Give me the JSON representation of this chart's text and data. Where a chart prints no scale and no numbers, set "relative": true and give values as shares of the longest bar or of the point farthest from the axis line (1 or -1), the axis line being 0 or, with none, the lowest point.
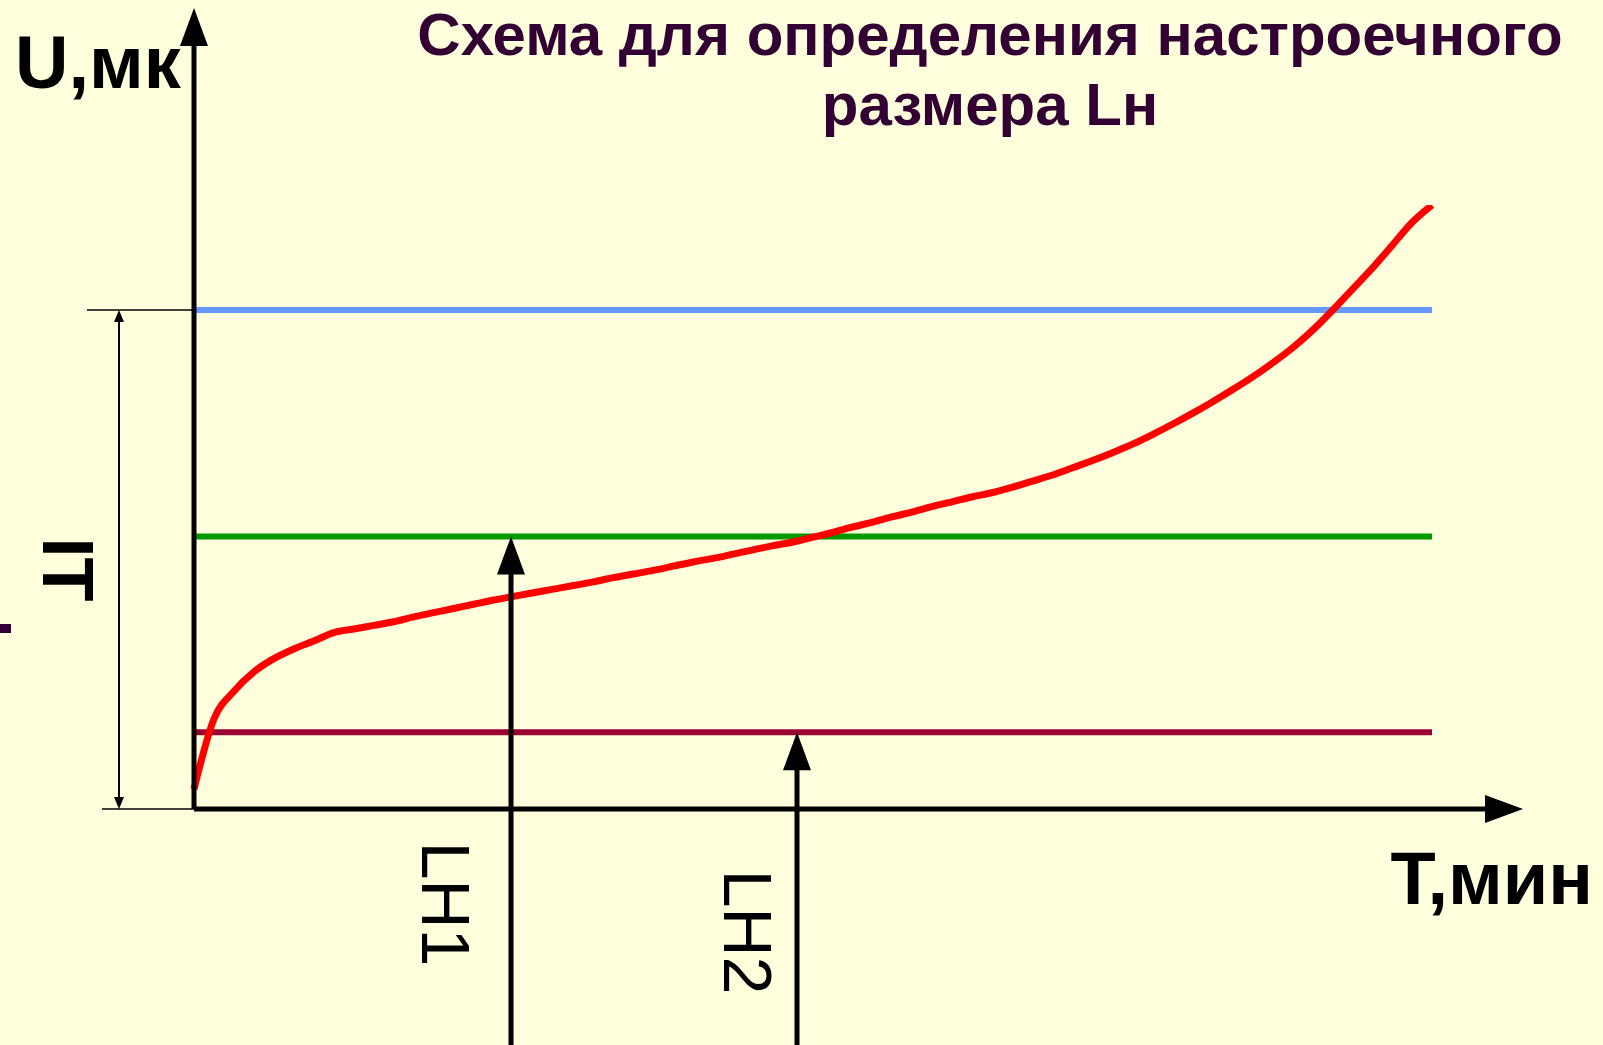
{
  "chart_data": {
    "type": "line",
    "title": "Схема для определения настроечного размера Lн",
    "xlabel": "T,мин",
    "ylabel": "U,мк",
    "relative": true,
    "categories": [
      null,
      null,
      null,
      null,
      null,
      null,
      null,
      null,
      null,
      null,
      null,
      null,
      null,
      null,
      null,
      null,
      null,
      null,
      null,
      null,
      null,
      null,
      null,
      null,
      null,
      null,
      null,
      null,
      null,
      null,
      null,
      null,
      null,
      null,
      null,
      null,
      null,
      null,
      null,
      null,
      null,
      null,
      null,
      null,
      null,
      null,
      null,
      null,
      null,
      null,
      null,
      null,
      null,
      null,
      null,
      null,
      null,
      null,
      null,
      null,
      null,
      null,
      null
    ],
    "series": [
      {
        "color": "#ff0000",
        "values": [
          0.033,
          0.149,
          0.195,
          0.227,
          0.249,
          0.265,
          0.278,
          0.292,
          0.298,
          0.304,
          0.31,
          0.318,
          0.325,
          0.332,
          0.339,
          0.346,
          0.352,
          0.358,
          0.364,
          0.37,
          0.376,
          0.383,
          0.389,
          0.395,
          0.402,
          0.409,
          0.415,
          0.422,
          0.429,
          0.436,
          0.442,
          0.45,
          0.458,
          0.467,
          0.475,
          0.484,
          0.492,
          0.501,
          0.509,
          0.517,
          0.524,
          0.533,
          0.543,
          0.553,
          0.565,
          0.577,
          0.59,
          0.604,
          0.62,
          0.637,
          0.655,
          0.674,
          0.694,
          0.715,
          0.738,
          0.763,
          0.792,
          0.825,
          0.86,
          0.895,
          0.933,
          0.971,
          1
        ]
      }
    ],
    "ref_lines": [
      {
        "axis": "y",
        "value": 0.826,
        "color": "#6699ff"
      },
      {
        "axis": "y",
        "value": 0.451,
        "color": "#009900"
      },
      {
        "axis": "y",
        "value": 0.127,
        "color": "#990033"
      }
    ],
    "annotations": [
      "IT",
      "LН1",
      "LН2"
    ]
  }
}
